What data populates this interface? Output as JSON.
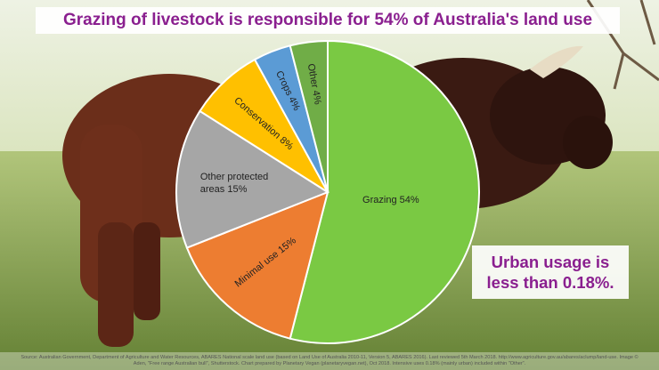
{
  "title": "Grazing of livestock is responsible for 54% of Australia's land use",
  "callout": "Urban usage is less than 0.18%.",
  "source_note": "Source: Australian Government, Department of Agriculture and Water Resources, ABARES National scale land use (based on Land Use of Australia 2010-11, Version 5, ABARES 2016). Last reviewed 5th March 2018. http://www.agriculture.gov.au/abares/aclump/land-use. Image © Aden, \"Free range Australian bull\", Shutterstock. Chart prepared by Planetary Vegan (planetaryvegan.net), Oct 2018. Intensive uses 0.18% (mainly urban) included within \"Other\".",
  "colors": {
    "title": "#8a1f8f",
    "grazing": "#7ac943",
    "minimal_use": "#ed7d31",
    "other_protected": "#a6a6a6",
    "conservation": "#ffc000",
    "crops": "#5b9bd5",
    "other": "#70ad47"
  },
  "chart_data": {
    "type": "pie",
    "title": "Grazing of livestock is responsible for 54% of Australia's land use",
    "slices": [
      {
        "label": "Grazing 54%",
        "value": 54,
        "color": "#7ac943"
      },
      {
        "label": "Minimal use 15%",
        "value": 15,
        "color": "#ed7d31"
      },
      {
        "label": "Other protected areas 15%",
        "value": 15,
        "color": "#a6a6a6"
      },
      {
        "label": "Conservation 8%",
        "value": 8,
        "color": "#ffc000"
      },
      {
        "label": "Crops 4%",
        "value": 4,
        "color": "#5b9bd5"
      },
      {
        "label": "Other 4%",
        "value": 4,
        "color": "#70ad47"
      }
    ],
    "legend": "none"
  }
}
